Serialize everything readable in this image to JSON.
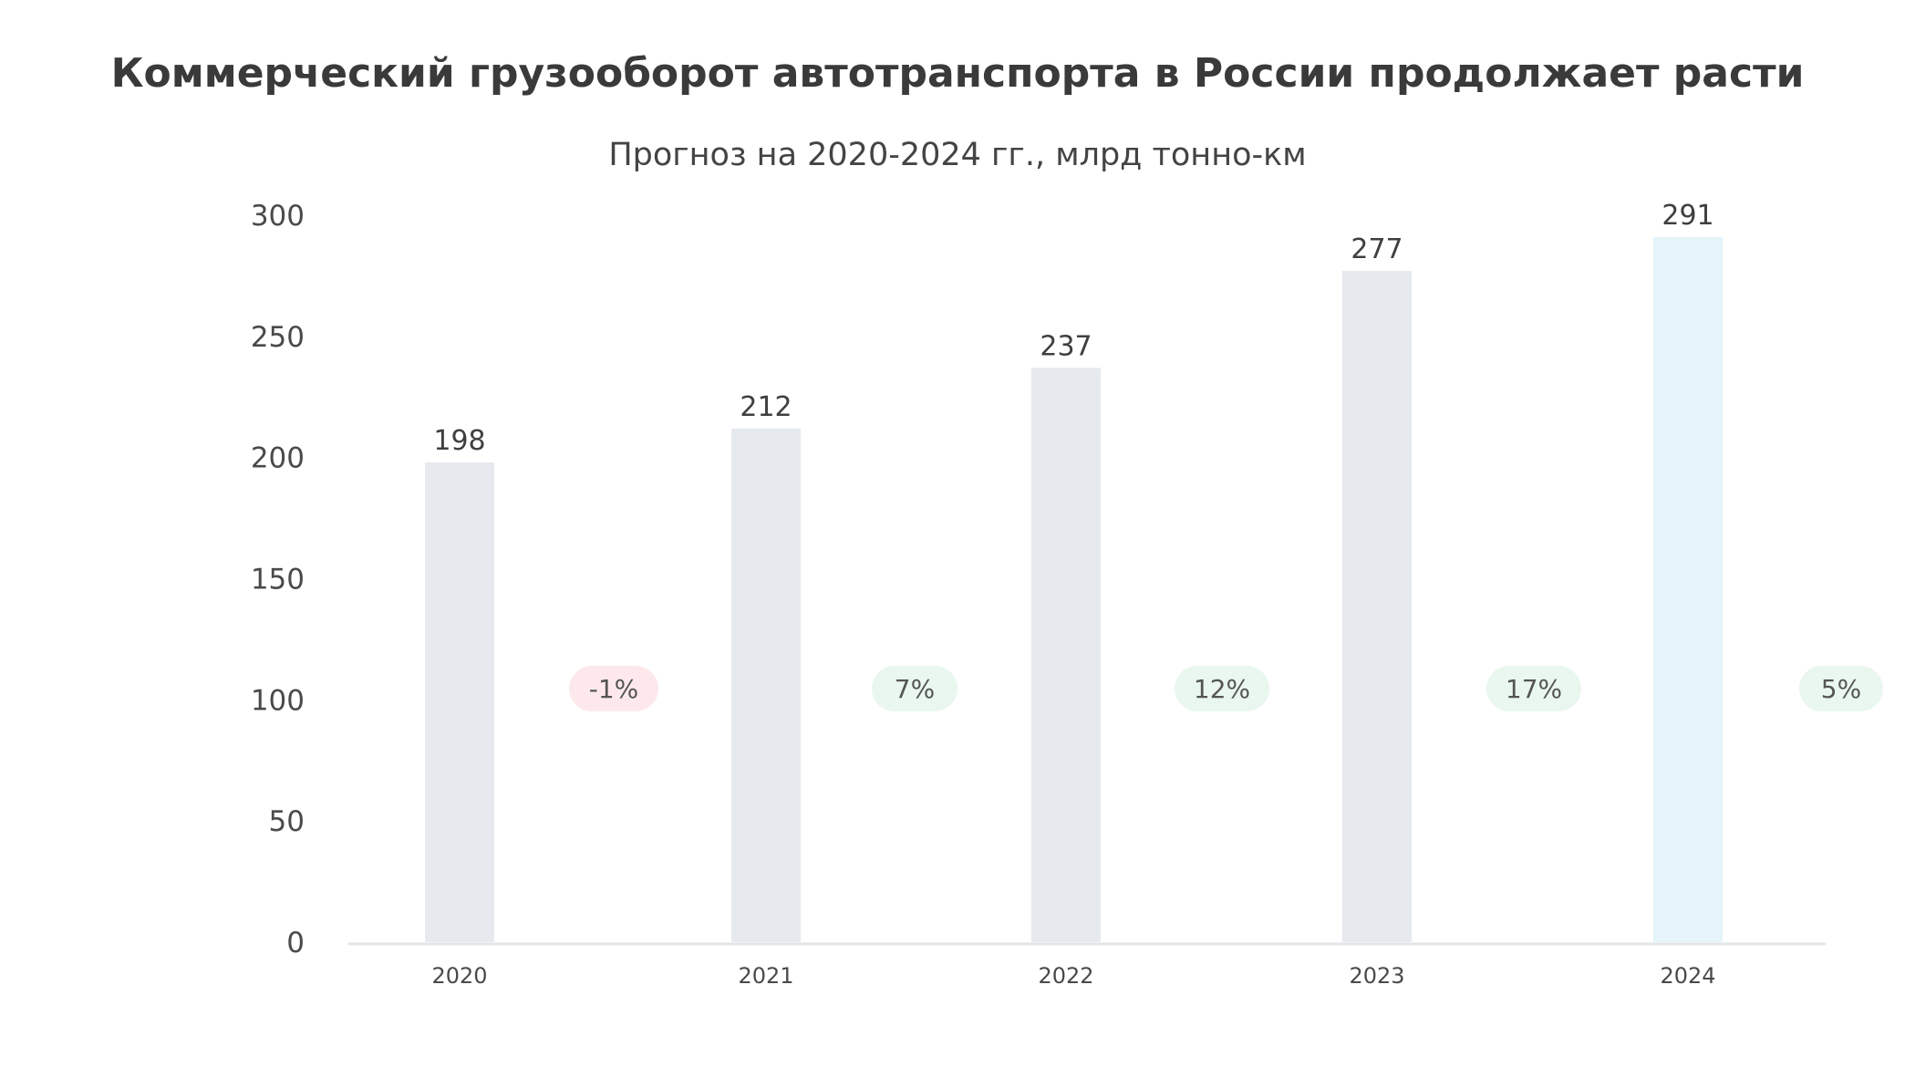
{
  "chart_data": {
    "type": "bar",
    "title": "Коммерческий грузооборот автотранспорта в России продолжает расти",
    "subtitle": "Прогноз на 2020-2024 гг., млрд тонно-км",
    "categories": [
      "2020",
      "2021",
      "2022",
      "2023",
      "2024"
    ],
    "values": [
      198,
      212,
      237,
      277,
      291
    ],
    "value_labels": [
      "198",
      "212",
      "237",
      "277",
      "291"
    ],
    "growth_labels": [
      "-1%",
      "7%",
      "12%",
      "17%",
      "5%"
    ],
    "y_ticks": [
      "0",
      "50",
      "100",
      "150",
      "200",
      "250",
      "300"
    ],
    "ylim": [
      0,
      300
    ],
    "grid": false,
    "legend": "none",
    "colors": {
      "bar": "#e6e9ee",
      "bar_highlight": "#e4f4fa",
      "axis": "#e2e4e8",
      "badge_negative_bg": "#fde9eb",
      "badge_positive_bg": "#e9f7ee"
    }
  }
}
